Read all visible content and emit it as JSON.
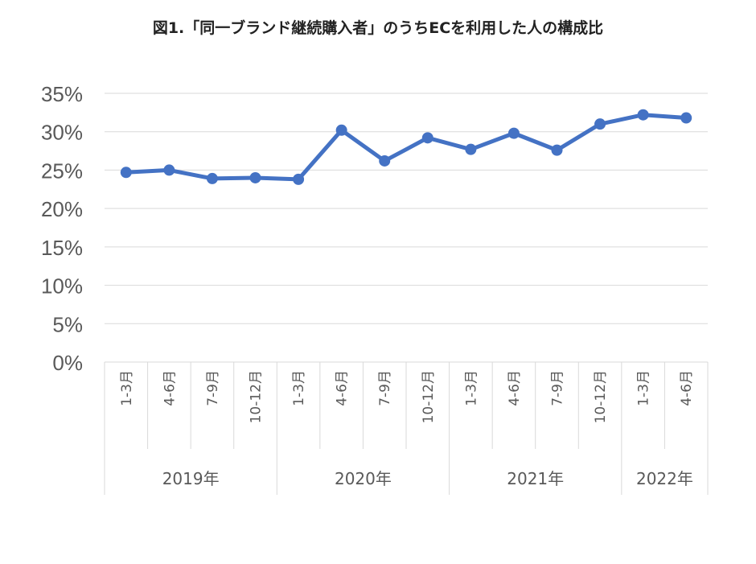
{
  "title": "図1.「同一ブランド継続購入者」のうちECを利用した人の構成比",
  "chart_data": {
    "type": "line",
    "title": "図1.「同一ブランド継続購入者」のうちECを利用した人の構成比",
    "xlabel": "",
    "ylabel": "",
    "ylim": [
      0,
      35
    ],
    "yticks": [
      "0%",
      "5%",
      "10%",
      "15%",
      "20%",
      "25%",
      "30%",
      "35%"
    ],
    "ytick_values": [
      0,
      5,
      10,
      15,
      20,
      25,
      30,
      35
    ],
    "grid": true,
    "legend": "none",
    "categories": [
      "1-3月",
      "4-6月",
      "7-9月",
      "10-12月",
      "1-3月",
      "4-6月",
      "7-9月",
      "10-12月",
      "1-3月",
      "4-6月",
      "7-9月",
      "10-12月",
      "1-3月",
      "4-6月"
    ],
    "groups": [
      {
        "label": "2019年",
        "count": 4
      },
      {
        "label": "2020年",
        "count": 4
      },
      {
        "label": "2021年",
        "count": 4
      },
      {
        "label": "2022年",
        "count": 2
      }
    ],
    "series": [
      {
        "values": [
          24.7,
          25.0,
          23.9,
          24.0,
          23.8,
          30.2,
          26.2,
          29.2,
          27.7,
          29.8,
          27.6,
          31.0,
          32.2,
          31.8
        ]
      }
    ],
    "colors": {
      "line": "#4472C4",
      "grid": "#D9D9D9",
      "text": "#595959"
    }
  }
}
